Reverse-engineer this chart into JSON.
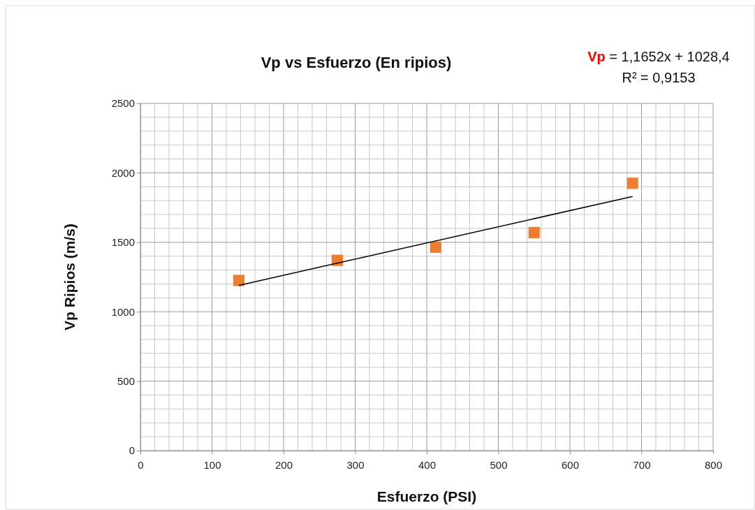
{
  "chart_data": {
    "type": "scatter",
    "title": "Vp vs Esfuerzo (En ripios)",
    "xlabel": "Esfuerzo (PSI)",
    "ylabel": "Vp Ripios (m/s)",
    "xlim": [
      0,
      800
    ],
    "xticks": [
      0,
      100,
      200,
      300,
      400,
      500,
      600,
      700,
      800
    ],
    "ylim": [
      0,
      2500
    ],
    "yticks": [
      0,
      500,
      1000,
      1500,
      2000,
      2500
    ],
    "grid": true,
    "series": [
      {
        "color": "#ed7d31",
        "marker": "square",
        "x": [
          137.5,
          275,
          412.5,
          550,
          687.5
        ],
        "values": [
          1225,
          1370,
          1465,
          1570,
          1925
        ]
      },
      {
        "type": "line",
        "color": "#000000",
        "marker": "none",
        "x": [
          137.5,
          687.5
        ],
        "values": [
          1190,
          1830
        ]
      }
    ],
    "annotations": [
      "Vp = 1,1652x + 1028,4",
      "R² = 0,9153"
    ]
  }
}
